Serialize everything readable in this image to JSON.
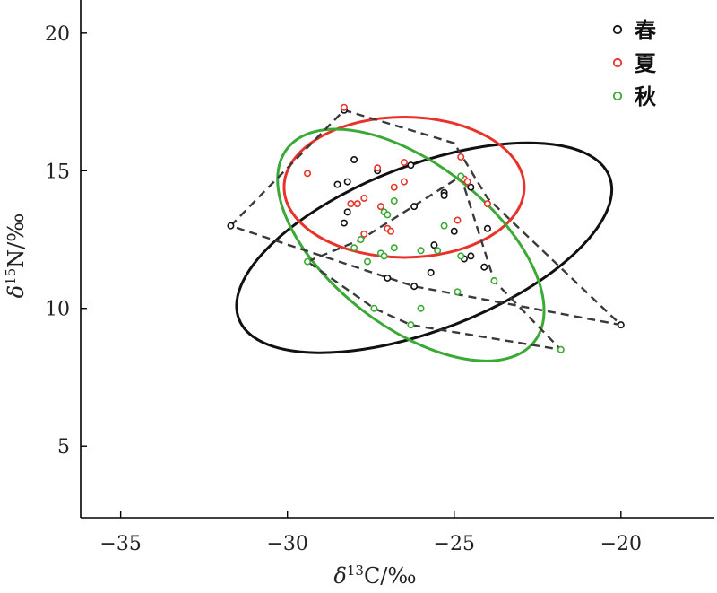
{
  "chart_data": {
    "type": "scatter",
    "xlim": [
      -36.2,
      -17.2
    ],
    "ylim": [
      2.4,
      21.2
    ],
    "xticks": [
      -35,
      -30,
      -25,
      -20
    ],
    "yticks": [
      5,
      10,
      15,
      20
    ],
    "xtick_labels": [
      "−35",
      "−30",
      "−25",
      "−20"
    ],
    "ytick_labels": [
      "5",
      "10",
      "15",
      "20"
    ],
    "xlabel": {
      "delta": "δ",
      "sup": "13",
      "rest": "C/‰"
    },
    "ylabel": {
      "delta": "δ",
      "sup": "15",
      "rest": "N/‰"
    },
    "grid": false,
    "legend_position": "top-right",
    "series": [
      {
        "name": "春",
        "color": "#111111",
        "points": [
          [
            -31.7,
            13.0
          ],
          [
            -28.3,
            17.2
          ],
          [
            -28.0,
            15.4
          ],
          [
            -27.3,
            15.0
          ],
          [
            -26.3,
            15.2
          ],
          [
            -25.3,
            14.2
          ],
          [
            -28.5,
            14.5
          ],
          [
            -28.2,
            14.6
          ],
          [
            -25.3,
            14.1
          ],
          [
            -24.5,
            14.4
          ],
          [
            -26.2,
            13.7
          ],
          [
            -28.2,
            13.5
          ],
          [
            -28.3,
            13.1
          ],
          [
            -25.0,
            12.8
          ],
          [
            -24.0,
            12.9
          ],
          [
            -25.6,
            12.3
          ],
          [
            -24.7,
            11.8
          ],
          [
            -24.5,
            11.9
          ],
          [
            -25.7,
            11.3
          ],
          [
            -24.1,
            11.5
          ],
          [
            -26.2,
            10.8
          ],
          [
            -27.0,
            11.1
          ],
          [
            -20.0,
            9.4
          ]
        ],
        "hull": [
          [
            -31.7,
            13.0
          ],
          [
            -28.3,
            17.2
          ],
          [
            -25.0,
            16.0
          ],
          [
            -24.0,
            14.0
          ],
          [
            -20.0,
            9.4
          ],
          [
            -26.2,
            10.8
          ],
          [
            -31.7,
            13.0
          ]
        ],
        "ellipse": {
          "center": [
            -25.9,
            12.2
          ],
          "rx_data": 5.95,
          "ry_data": 3.0,
          "angle_deg": -21
        }
      },
      {
        "name": "夏",
        "color": "#e8322a",
        "points": [
          [
            -28.3,
            17.3
          ],
          [
            -29.4,
            14.9
          ],
          [
            -27.3,
            15.1
          ],
          [
            -26.5,
            15.3
          ],
          [
            -26.5,
            14.6
          ],
          [
            -26.8,
            14.4
          ],
          [
            -24.8,
            15.5
          ],
          [
            -24.7,
            14.7
          ],
          [
            -24.6,
            14.6
          ],
          [
            -27.7,
            14.0
          ],
          [
            -27.9,
            13.8
          ],
          [
            -28.1,
            13.8
          ],
          [
            -27.2,
            13.7
          ],
          [
            -24.0,
            13.8
          ],
          [
            -24.9,
            13.2
          ],
          [
            -27.0,
            12.9
          ],
          [
            -26.9,
            12.8
          ],
          [
            -27.7,
            12.7
          ]
        ],
        "ellipse": {
          "center": [
            -26.5,
            14.4
          ],
          "rx_data": 3.6,
          "ry_data": 2.55,
          "angle_deg": 0
        }
      },
      {
        "name": "秋",
        "color": "#3aa935",
        "points": [
          [
            -29.4,
            11.7
          ],
          [
            -27.8,
            12.5
          ],
          [
            -28.0,
            12.2
          ],
          [
            -27.6,
            11.7
          ],
          [
            -27.2,
            12.0
          ],
          [
            -27.1,
            11.9
          ],
          [
            -26.8,
            12.2
          ],
          [
            -26.0,
            12.1
          ],
          [
            -25.5,
            12.1
          ],
          [
            -25.3,
            13.0
          ],
          [
            -24.8,
            14.8
          ],
          [
            -27.1,
            13.5
          ],
          [
            -27.0,
            13.4
          ],
          [
            -26.8,
            13.9
          ],
          [
            -24.8,
            11.9
          ],
          [
            -23.8,
            11.0
          ],
          [
            -24.9,
            10.6
          ],
          [
            -26.0,
            10.0
          ],
          [
            -27.4,
            10.0
          ],
          [
            -26.3,
            9.4
          ],
          [
            -21.8,
            8.5
          ]
        ],
        "hull": [
          [
            -29.4,
            11.7
          ],
          [
            -27.8,
            12.5
          ],
          [
            -24.8,
            14.8
          ],
          [
            -23.8,
            11.0
          ],
          [
            -21.8,
            8.5
          ],
          [
            -26.3,
            9.4
          ],
          [
            -27.4,
            10.0
          ],
          [
            -29.4,
            11.7
          ]
        ],
        "ellipse": {
          "center": [
            -26.3,
            12.3
          ],
          "rx_data": 4.7,
          "ry_data": 2.95,
          "angle_deg": 38
        }
      }
    ]
  }
}
